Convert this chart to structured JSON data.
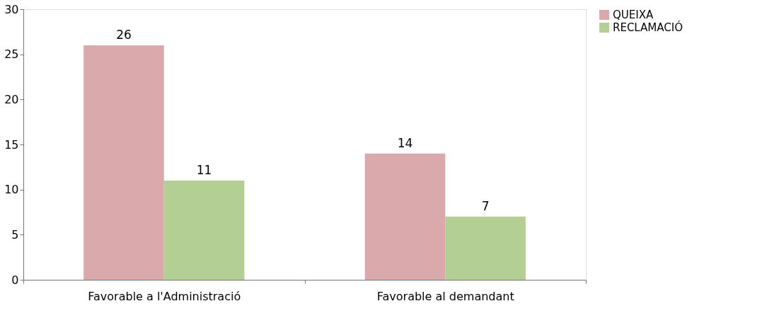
{
  "chart_data": {
    "type": "bar",
    "categories": [
      "Favorable a l'Administració",
      "Favorable al demandant"
    ],
    "series": [
      {
        "name": "QUEIXA",
        "color": "#d9a9ab",
        "values": [
          26,
          14
        ]
      },
      {
        "name": "RECLAMACIÓ",
        "color": "#b3cf93",
        "values": [
          11,
          7
        ]
      }
    ],
    "ylim": [
      0,
      30
    ],
    "yticks": [
      0,
      5,
      10,
      15,
      20,
      25,
      30
    ],
    "grid": false,
    "legend": "right",
    "data_labels": true
  }
}
